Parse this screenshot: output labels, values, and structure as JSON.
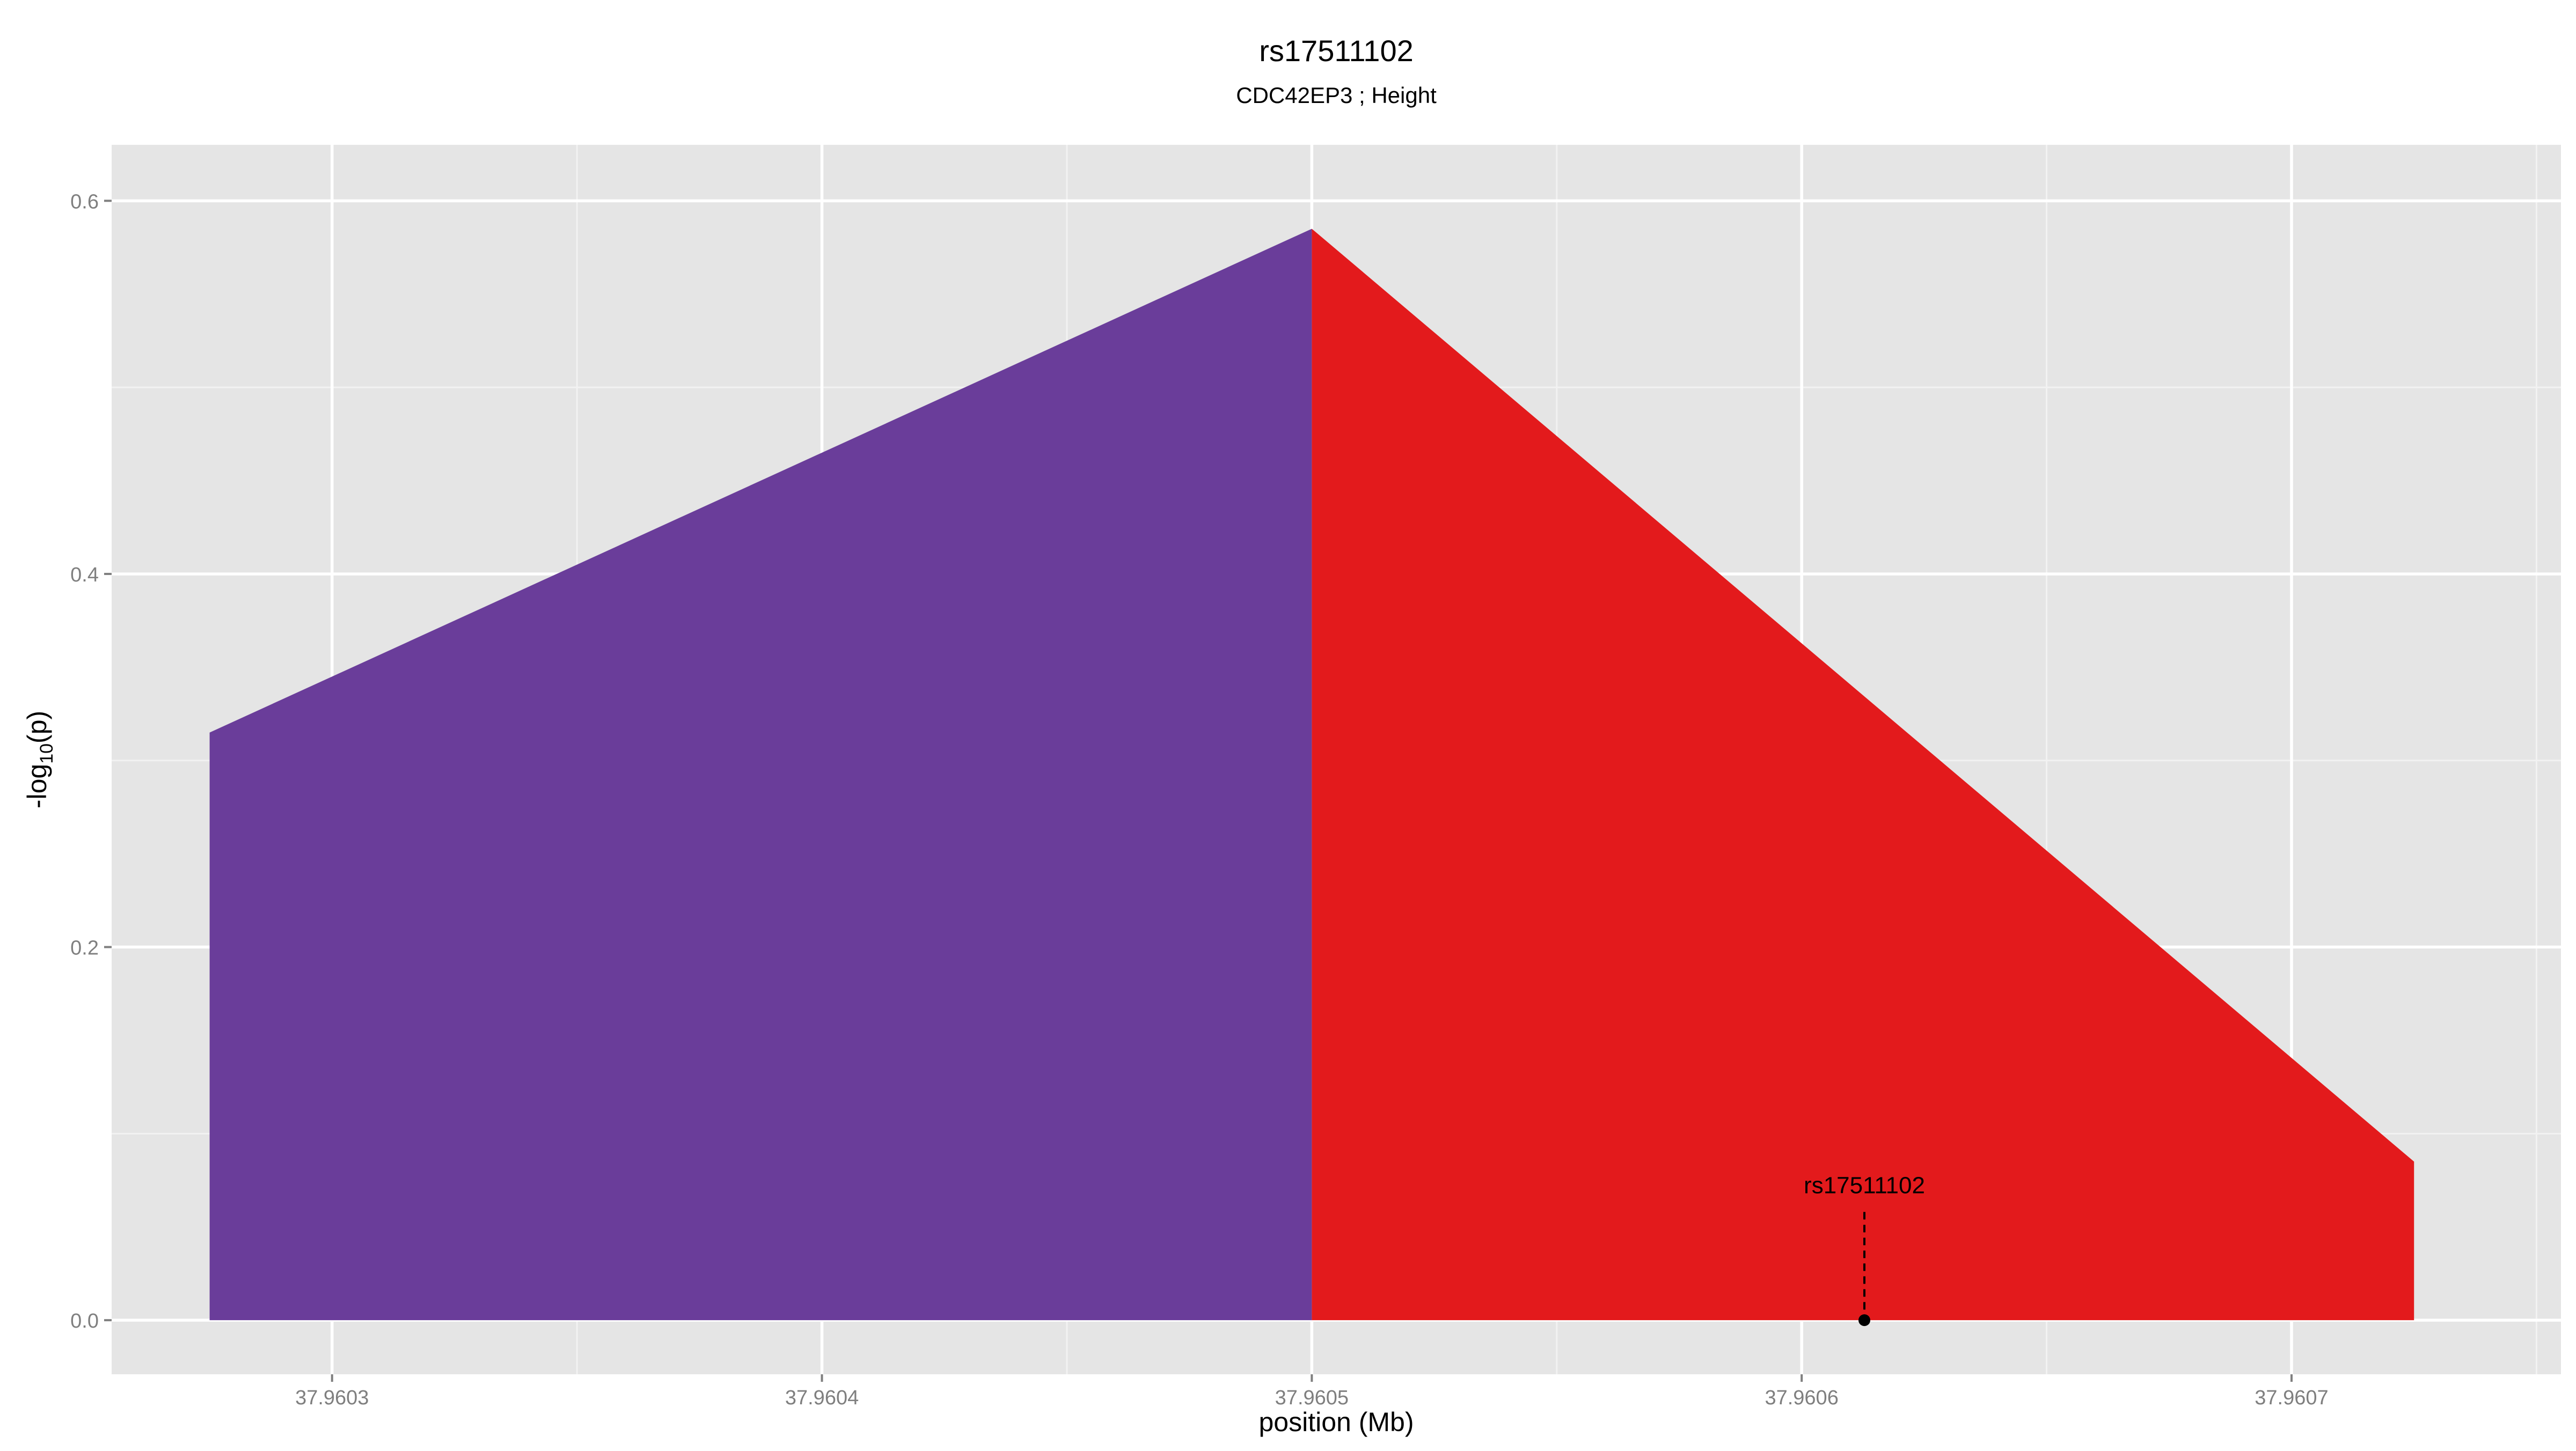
{
  "chart_data": {
    "type": "area",
    "title": "rs17511102",
    "subtitle": "CDC42EP3 ; Height",
    "xlabel": "position (Mb)",
    "ylabel": "-log10(p)",
    "ylabel_parts": {
      "pre": "-log",
      "sub": "10",
      "post": "(p)"
    },
    "xlim": [
      37.960255,
      37.960755
    ],
    "ylim": [
      -0.029,
      0.63
    ],
    "x_ticks": [
      37.9603,
      37.9604,
      37.9605,
      37.9606,
      37.9607
    ],
    "x_tick_labels": [
      "37.9603",
      "37.9604",
      "37.9605",
      "37.9606",
      "37.9607"
    ],
    "y_ticks": [
      0.0,
      0.2,
      0.4,
      0.6
    ],
    "y_tick_labels": [
      "0.0",
      "0.2",
      "0.4",
      "0.6"
    ],
    "grid": true,
    "colors": {
      "panel_background": "#e5e5e5",
      "grid_major": "#ffffff",
      "grid_minor": "#f2f2f2",
      "tick_label": "#7f7f7f"
    },
    "series": [
      {
        "color": "#6a3d9a",
        "points": [
          {
            "x": 37.960275,
            "y": 0.0
          },
          {
            "x": 37.960275,
            "y": 0.315
          },
          {
            "x": 37.9605,
            "y": 0.585
          },
          {
            "x": 37.9605,
            "y": 0.0
          }
        ]
      },
      {
        "color": "#e31a1c",
        "points": [
          {
            "x": 37.9605,
            "y": 0.0
          },
          {
            "x": 37.9605,
            "y": 0.585
          },
          {
            "x": 37.960725,
            "y": 0.085
          },
          {
            "x": 37.960725,
            "y": 0.0
          }
        ]
      }
    ],
    "annotations": [
      {
        "label": "rs17511102",
        "x": 37.9606128,
        "y": 0.0,
        "label_y": 0.072,
        "line_top": 0.058
      }
    ]
  }
}
